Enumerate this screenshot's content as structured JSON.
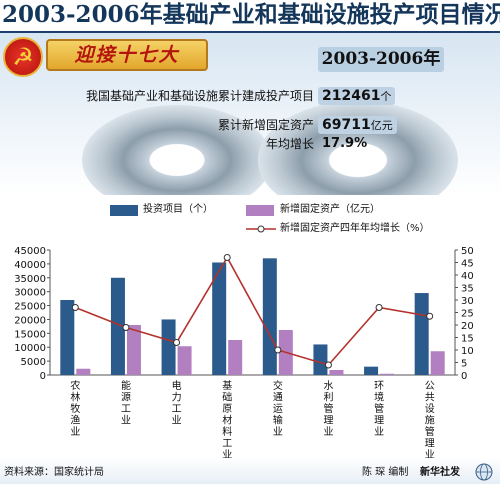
{
  "title": "2003-2006年基础产业和基础设施投产项目情况",
  "banner": {
    "slogan": "迎接十七大",
    "period": "2003-2006年",
    "stats": [
      {
        "label": "我国基础产业和基础设施累计建成投产项目",
        "value": "212461",
        "unit": "个"
      },
      {
        "label": "累计新增固定资产",
        "value": "69711",
        "unit": "亿元"
      },
      {
        "label": "年均增长",
        "value": "17.9%",
        "unit": ""
      }
    ]
  },
  "colors": {
    "investment": "#2b5a8c",
    "fixed_assets": "#b27fc0",
    "growth_line": "#b4322c",
    "title": "#14365a"
  },
  "chart_data": {
    "type": "bar",
    "categories": [
      "农林牧渔业",
      "能源工业",
      "电力工业",
      "基础原材料工业",
      "交通运输业",
      "水利管理业",
      "环境管理业",
      "公共设施管理业"
    ],
    "series": [
      {
        "name": "投资项目（个）",
        "type": "bar",
        "axis": "left",
        "values": [
          27000,
          35000,
          20000,
          40500,
          42000,
          11000,
          3000,
          29500
        ]
      },
      {
        "name": "新增固定资产（亿元）",
        "type": "bar",
        "axis": "right",
        "values": [
          2.5,
          20,
          11.5,
          14,
          18,
          2,
          0.5,
          9.5
        ]
      },
      {
        "name": "新增固定资产四年年均增长（%）",
        "type": "line",
        "axis": "right",
        "values": [
          27,
          19,
          13,
          47,
          10,
          4,
          27,
          23.5
        ]
      }
    ],
    "ylim_left": [
      0,
      45000
    ],
    "ylim_right": [
      0,
      50
    ],
    "left_ticks": [
      0,
      5000,
      10000,
      15000,
      20000,
      25000,
      30000,
      35000,
      40000,
      45000
    ],
    "right_ticks": [
      0,
      5,
      10,
      15,
      20,
      25,
      30,
      35,
      40,
      45,
      50
    ],
    "grid": false,
    "legend_position": "top"
  },
  "footer": {
    "source": "资料来源：国家统计局",
    "editor": "陈 琛 编制",
    "agency": "新华社发"
  }
}
